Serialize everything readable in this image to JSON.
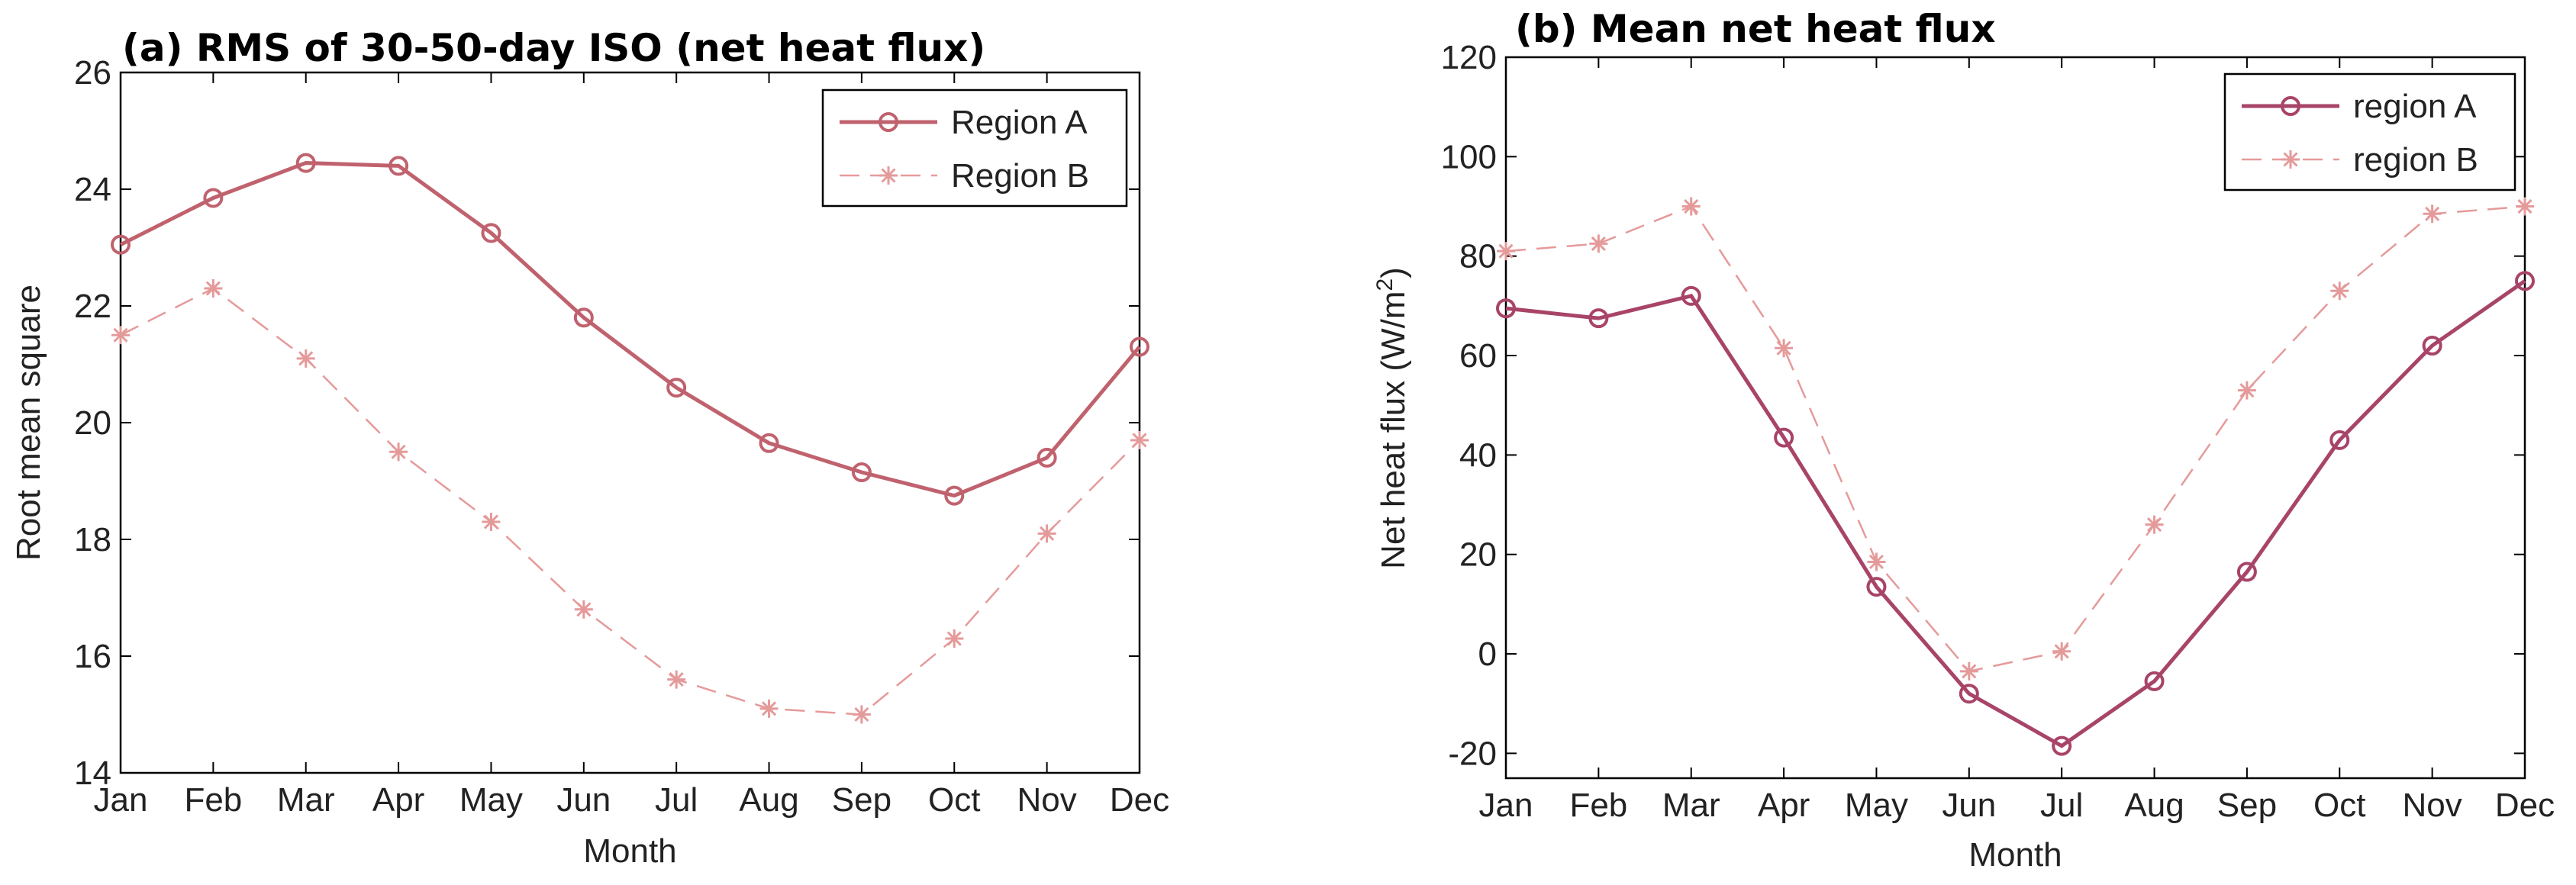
{
  "chart_data": [
    {
      "type": "line",
      "title": "(a) RMS of 30-50-day ISO (net heat flux)",
      "xlabel": "Month",
      "ylabel": "Root mean square",
      "categories": [
        "Jan",
        "Feb",
        "Mar",
        "Apr",
        "May",
        "Jun",
        "Jul",
        "Aug",
        "Sep",
        "Oct",
        "Nov",
        "Dec"
      ],
      "ylim": [
        14,
        26
      ],
      "yticks": [
        14,
        16,
        18,
        20,
        22,
        24,
        26
      ],
      "ytick_labels": [
        "14",
        "16",
        "18",
        "20",
        "22",
        "24",
        "26"
      ],
      "legend_position": "top-right",
      "series": [
        {
          "name": "Region A",
          "marker": "circle",
          "linestyle": "solid",
          "color": "#c0626e",
          "values": [
            23.05,
            23.85,
            24.45,
            24.4,
            23.25,
            21.8,
            20.6,
            19.65,
            19.15,
            18.75,
            19.4,
            21.3
          ]
        },
        {
          "name": "Region B",
          "marker": "star",
          "linestyle": "dashed",
          "color": "#e59a9a",
          "values": [
            21.5,
            22.3,
            21.1,
            19.5,
            18.3,
            16.8,
            15.6,
            15.1,
            15.0,
            16.3,
            18.1,
            19.7
          ]
        }
      ]
    },
    {
      "type": "line",
      "title": "(b) Mean net heat flux",
      "xlabel": "Month",
      "ylabel_main": "Net heat flux (W/m",
      "ylabel_sup": "2",
      "ylabel_end": ")",
      "categories": [
        "Jan",
        "Feb",
        "Mar",
        "Apr",
        "May",
        "Jun",
        "Jul",
        "Aug",
        "Sep",
        "Oct",
        "Nov",
        "Dec"
      ],
      "ylim": [
        -25,
        120
      ],
      "yticks": [
        -20,
        0,
        20,
        40,
        60,
        80,
        100,
        120
      ],
      "ytick_labels": [
        "-20",
        "0",
        "20",
        "40",
        "60",
        "80",
        "100",
        "120"
      ],
      "legend_position": "top-right",
      "series": [
        {
          "name": "region A",
          "marker": "circle",
          "linestyle": "solid",
          "color": "#a84468",
          "values": [
            69.5,
            67.5,
            72,
            43.5,
            13.5,
            -8,
            -18.5,
            -5.5,
            16.5,
            43,
            62,
            75
          ]
        },
        {
          "name": "region B",
          "marker": "star",
          "linestyle": "dashed",
          "color": "#e59a9a",
          "values": [
            81,
            82.5,
            90,
            61.5,
            18.5,
            -3.5,
            0.5,
            26,
            53,
            73,
            88.5,
            90
          ]
        }
      ]
    }
  ]
}
